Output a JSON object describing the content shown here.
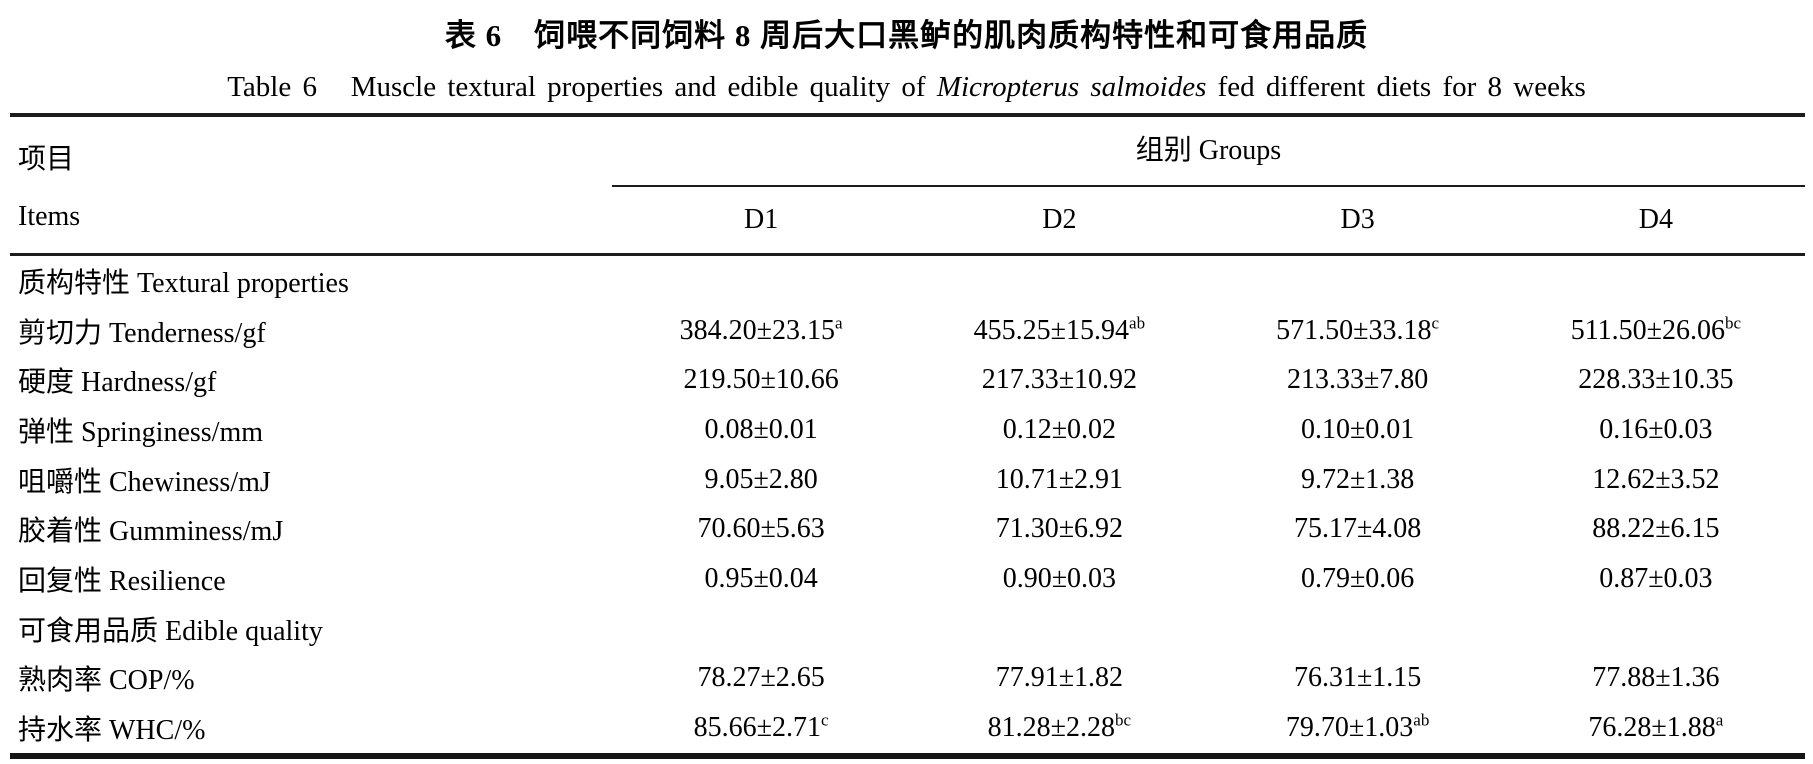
{
  "title_zh": "表 6　饲喂不同饲料 8 周后大口黑鲈的肌肉质构特性和可食用品质",
  "title_en": {
    "prefix": "Table 6   Muscle textural properties and edible quality of ",
    "species_italic": "Micropterus salmoides",
    "suffix": " fed different diets for 8 weeks"
  },
  "table": {
    "items_header_zh": "项目",
    "items_header_en": "Items",
    "groups_header": "组别 Groups",
    "group_labels": [
      "D1",
      "D2",
      "D3",
      "D4"
    ],
    "rows": [
      {
        "type": "section",
        "label": "质构特性 Textural properties"
      },
      {
        "type": "data",
        "label": "剪切力 Tenderness/gf",
        "values": [
          {
            "v": "384.20±23.15",
            "sup": "a"
          },
          {
            "v": "455.25±15.94",
            "sup": "ab"
          },
          {
            "v": "571.50±33.18",
            "sup": "c"
          },
          {
            "v": "511.50±26.06",
            "sup": "bc"
          }
        ]
      },
      {
        "type": "data",
        "label": "硬度 Hardness/gf",
        "values": [
          {
            "v": "219.50±10.66",
            "sup": ""
          },
          {
            "v": "217.33±10.92",
            "sup": ""
          },
          {
            "v": "213.33±7.80",
            "sup": ""
          },
          {
            "v": "228.33±10.35",
            "sup": ""
          }
        ]
      },
      {
        "type": "data",
        "label": "弹性 Springiness/mm",
        "values": [
          {
            "v": "0.08±0.01",
            "sup": ""
          },
          {
            "v": "0.12±0.02",
            "sup": ""
          },
          {
            "v": "0.10±0.01",
            "sup": ""
          },
          {
            "v": "0.16±0.03",
            "sup": ""
          }
        ]
      },
      {
        "type": "data",
        "label": "咀嚼性 Chewiness/mJ",
        "values": [
          {
            "v": "9.05±2.80",
            "sup": ""
          },
          {
            "v": "10.71±2.91",
            "sup": ""
          },
          {
            "v": "9.72±1.38",
            "sup": ""
          },
          {
            "v": "12.62±3.52",
            "sup": ""
          }
        ]
      },
      {
        "type": "data",
        "label": "胶着性 Gumminess/mJ",
        "values": [
          {
            "v": "70.60±5.63",
            "sup": ""
          },
          {
            "v": "71.30±6.92",
            "sup": ""
          },
          {
            "v": "75.17±4.08",
            "sup": ""
          },
          {
            "v": "88.22±6.15",
            "sup": ""
          }
        ]
      },
      {
        "type": "data",
        "label": "回复性 Resilience",
        "values": [
          {
            "v": "0.95±0.04",
            "sup": ""
          },
          {
            "v": "0.90±0.03",
            "sup": ""
          },
          {
            "v": "0.79±0.06",
            "sup": ""
          },
          {
            "v": "0.87±0.03",
            "sup": ""
          }
        ]
      },
      {
        "type": "section",
        "label": "可食用品质 Edible quality"
      },
      {
        "type": "data",
        "label": "熟肉率 COP/%",
        "values": [
          {
            "v": "78.27±2.65",
            "sup": ""
          },
          {
            "v": "77.91±1.82",
            "sup": ""
          },
          {
            "v": "76.31±1.15",
            "sup": ""
          },
          {
            "v": "77.88±1.36",
            "sup": ""
          }
        ]
      },
      {
        "type": "data",
        "label": "持水率 WHC/%",
        "values": [
          {
            "v": "85.66±2.71",
            "sup": "c"
          },
          {
            "v": "81.28±2.28",
            "sup": "bc"
          },
          {
            "v": "79.70±1.03",
            "sup": "ab"
          },
          {
            "v": "76.28±1.88",
            "sup": "a"
          }
        ]
      }
    ]
  }
}
